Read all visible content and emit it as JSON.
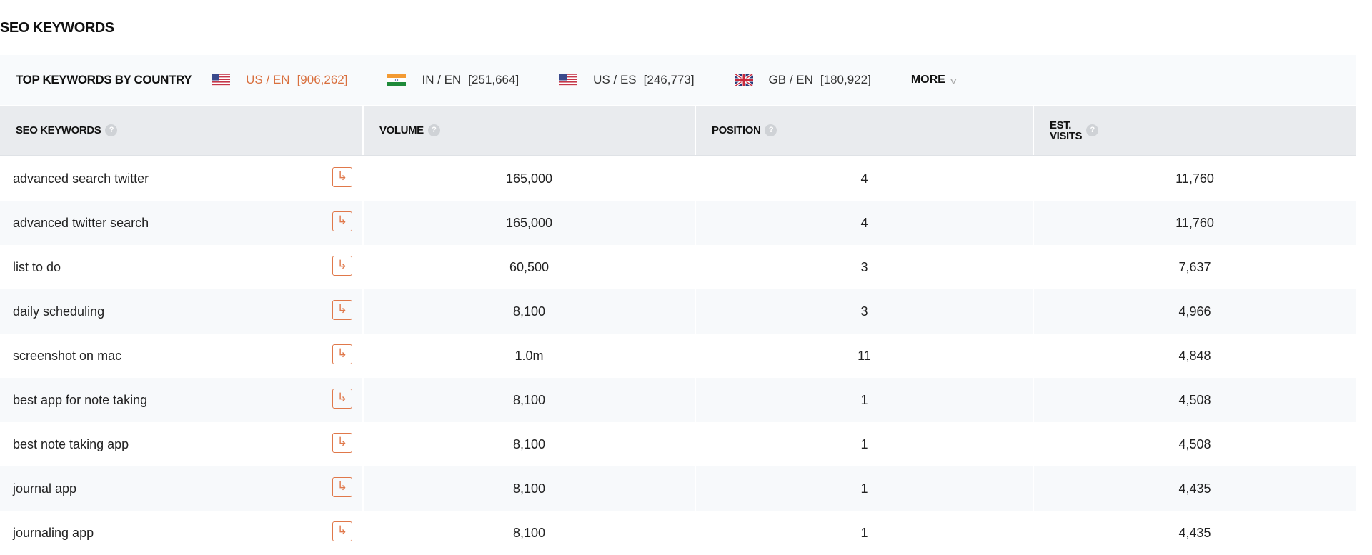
{
  "title": "SEO KEYWORDS",
  "country_bar": {
    "label": "TOP KEYWORDS BY COUNTRY",
    "countries": [
      {
        "code": "US / EN",
        "count": "[906,262]",
        "flag": "us-flag-icon",
        "active": true
      },
      {
        "code": "IN / EN",
        "count": "[251,664]",
        "flag": "india-flag-icon",
        "active": false
      },
      {
        "code": "US / ES",
        "count": "[246,773]",
        "flag": "us-flag-icon",
        "active": false
      },
      {
        "code": "GB / EN",
        "count": "[180,922]",
        "flag": "uk-flag-icon",
        "active": false
      }
    ],
    "more_label": "MORE"
  },
  "table": {
    "headers": {
      "keyword": "SEO KEYWORDS",
      "volume": "VOLUME",
      "position": "POSITION",
      "visits_1": "EST.",
      "visits_2": "VISITS"
    },
    "rows": [
      {
        "keyword": "advanced search twitter",
        "volume": "165,000",
        "position": "4",
        "visits": "11,760"
      },
      {
        "keyword": "advanced twitter search",
        "volume": "165,000",
        "position": "4",
        "visits": "11,760"
      },
      {
        "keyword": "list to do",
        "volume": "60,500",
        "position": "3",
        "visits": "7,637"
      },
      {
        "keyword": "daily scheduling",
        "volume": "8,100",
        "position": "3",
        "visits": "4,966"
      },
      {
        "keyword": "screenshot on mac",
        "volume": "1.0m",
        "position": "11",
        "visits": "4,848"
      },
      {
        "keyword": "best app for note taking",
        "volume": "8,100",
        "position": "1",
        "visits": "4,508"
      },
      {
        "keyword": "best note taking app",
        "volume": "8,100",
        "position": "1",
        "visits": "4,508"
      },
      {
        "keyword": "journal app",
        "volume": "8,100",
        "position": "1",
        "visits": "4,435"
      },
      {
        "keyword": "journaling app",
        "volume": "8,100",
        "position": "1",
        "visits": "4,435"
      }
    ]
  },
  "colors": {
    "accent": "#d9703f",
    "header_bg": "#e9ebee",
    "alt_row": "#f7f9fb"
  }
}
